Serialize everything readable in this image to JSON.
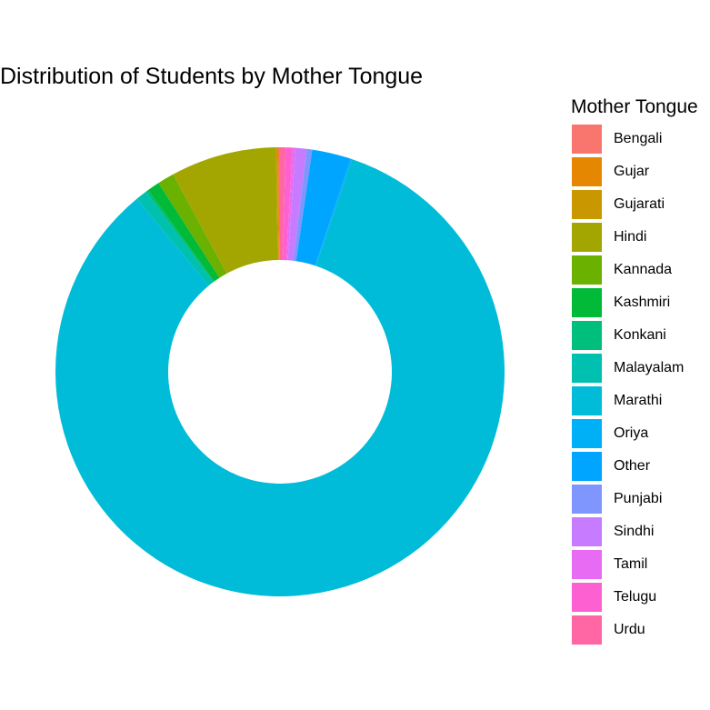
{
  "chart_data": {
    "type": "pie",
    "variant": "donut",
    "title": "Distribution of Students by Mother Tongue",
    "legend_title": "Mother Tongue",
    "legend_position": "right",
    "categories": [
      "Bengali",
      "Gujar",
      "Gujarati",
      "Hindi",
      "Kannada",
      "Kashmiri",
      "Konkani",
      "Malayalam",
      "Marathi",
      "Oriya",
      "Other",
      "Punjabi",
      "Sindhi",
      "Tamil",
      "Telugu",
      "Urdu"
    ],
    "values": [
      0.1,
      0.1,
      0.1,
      7.6,
      1.2,
      0.9,
      0.2,
      0.8,
      83.8,
      0.1,
      2.8,
      0.4,
      0.8,
      0.2,
      0.5,
      0.4
    ],
    "unit": "percent",
    "colors": [
      "#F8766D",
      "#E58700",
      "#C99800",
      "#A3A500",
      "#6BB100",
      "#00BA38",
      "#00BF7D",
      "#00C0AF",
      "#00BCD8",
      "#00B0F6",
      "#00A5FF",
      "#7F96FF",
      "#C77CFF",
      "#E76BF3",
      "#FD61D1",
      "#FF67A4"
    ]
  }
}
